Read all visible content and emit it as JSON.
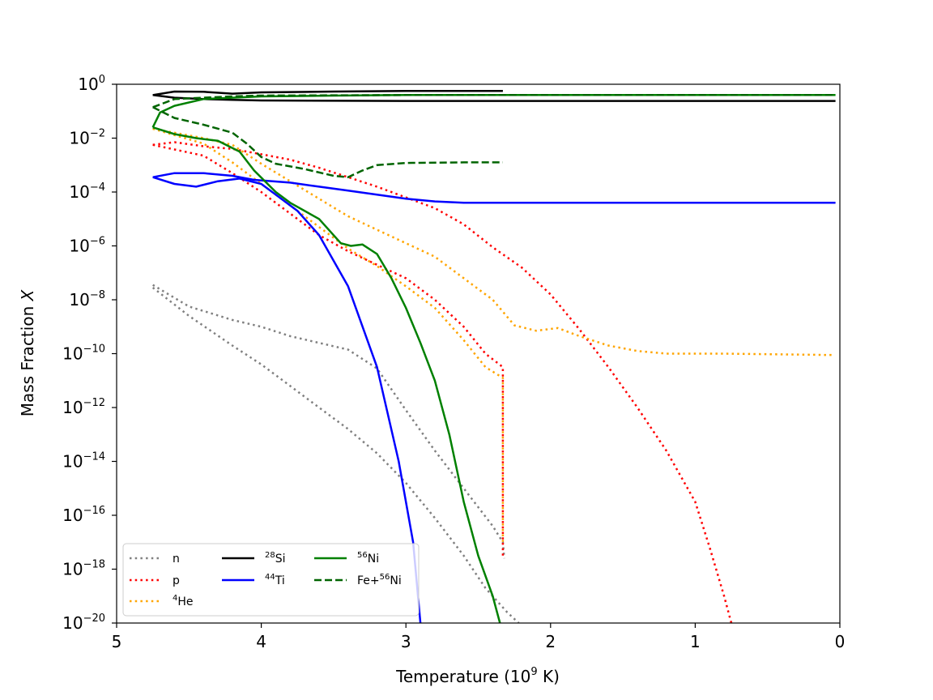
{
  "chart_data": {
    "type": "line",
    "xlabel": "Temperature (10⁹ K)",
    "xlabel_parts": {
      "pre": "Temperature (10",
      "sup": "9",
      "post": " K)"
    },
    "ylabel": "Mass Fraction X",
    "ylabel_parts": {
      "pre": "Mass Fraction ",
      "italic": "X"
    },
    "xlim": [
      5,
      0
    ],
    "ylim_log10": [
      -20,
      0
    ],
    "yscale": "log",
    "grid": false,
    "legend_location": "lower-left",
    "x_ticks": [
      {
        "value": 5,
        "label": "5"
      },
      {
        "value": 4,
        "label": "4"
      },
      {
        "value": 3,
        "label": "3"
      },
      {
        "value": 2,
        "label": "2"
      },
      {
        "value": 1,
        "label": "1"
      },
      {
        "value": 0,
        "label": "0"
      }
    ],
    "y_ticks": [
      {
        "exp": 0,
        "base": "10",
        "sup": "0"
      },
      {
        "exp": -2,
        "base": "10",
        "sup": "−2"
      },
      {
        "exp": -4,
        "base": "10",
        "sup": "−4"
      },
      {
        "exp": -6,
        "base": "10",
        "sup": "−6"
      },
      {
        "exp": -8,
        "base": "10",
        "sup": "−8"
      },
      {
        "exp": -10,
        "base": "10",
        "sup": "−10"
      },
      {
        "exp": -12,
        "base": "10",
        "sup": "−12"
      },
      {
        "exp": -14,
        "base": "10",
        "sup": "−14"
      },
      {
        "exp": -16,
        "base": "10",
        "sup": "−16"
      },
      {
        "exp": -18,
        "base": "10",
        "sup": "−18"
      },
      {
        "exp": -20,
        "base": "10",
        "sup": "−20"
      }
    ],
    "series": [
      {
        "id": "n",
        "name": "n",
        "label_sup": "",
        "label_main": "n",
        "color": "#808080",
        "style": "dotted",
        "legend_col": 0,
        "legend_row": 0,
        "lines": [
          [
            [
              4.75,
              -7.45
            ],
            [
              4.5,
              -8.25
            ],
            [
              4.2,
              -8.75
            ],
            [
              4.0,
              -9.0
            ],
            [
              3.8,
              -9.35
            ],
            [
              3.6,
              -9.6
            ],
            [
              3.4,
              -9.85
            ],
            [
              3.2,
              -10.55
            ],
            [
              3.0,
              -12.1
            ],
            [
              2.8,
              -13.6
            ],
            [
              2.6,
              -15.0
            ],
            [
              2.4,
              -16.4
            ],
            [
              2.33,
              -17.0
            ],
            [
              2.32,
              -17.6
            ]
          ],
          [
            [
              4.75,
              -7.55
            ],
            [
              4.5,
              -8.6
            ],
            [
              4.2,
              -9.7
            ],
            [
              4.0,
              -10.4
            ],
            [
              3.8,
              -11.2
            ],
            [
              3.6,
              -12.0
            ],
            [
              3.4,
              -12.8
            ],
            [
              3.2,
              -13.7
            ],
            [
              3.0,
              -14.8
            ],
            [
              2.8,
              -16.1
            ],
            [
              2.6,
              -17.5
            ],
            [
              2.45,
              -18.7
            ],
            [
              2.3,
              -19.6
            ],
            [
              2.22,
              -20.0
            ]
          ]
        ]
      },
      {
        "id": "p",
        "name": "p",
        "label_sup": "",
        "label_main": "p",
        "color": "#ff0000",
        "style": "dotted",
        "legend_col": 0,
        "legend_row": 1,
        "lines": [
          [
            [
              4.75,
              -2.25
            ],
            [
              4.6,
              -2.15
            ],
            [
              4.4,
              -2.3
            ],
            [
              4.2,
              -2.4
            ],
            [
              4.0,
              -2.6
            ],
            [
              3.8,
              -2.8
            ],
            [
              3.6,
              -3.1
            ],
            [
              3.4,
              -3.45
            ],
            [
              3.2,
              -3.8
            ],
            [
              3.0,
              -4.2
            ],
            [
              2.8,
              -4.6
            ],
            [
              2.6,
              -5.2
            ],
            [
              2.4,
              -6.05
            ],
            [
              2.2,
              -6.8
            ],
            [
              2.0,
              -7.8
            ],
            [
              1.8,
              -9.1
            ],
            [
              1.6,
              -10.5
            ],
            [
              1.4,
              -12.0
            ],
            [
              1.2,
              -13.6
            ],
            [
              1.0,
              -15.5
            ],
            [
              0.9,
              -17.2
            ],
            [
              0.8,
              -19.0
            ],
            [
              0.75,
              -20.0
            ]
          ],
          [
            [
              4.75,
              -2.25
            ],
            [
              4.4,
              -2.65
            ],
            [
              4.2,
              -3.3
            ],
            [
              4.0,
              -4.0
            ],
            [
              3.8,
              -4.8
            ],
            [
              3.6,
              -5.6
            ],
            [
              3.4,
              -6.2
            ],
            [
              3.2,
              -6.7
            ],
            [
              3.0,
              -7.2
            ],
            [
              2.8,
              -8.0
            ],
            [
              2.6,
              -9.0
            ],
            [
              2.45,
              -10.0
            ],
            [
              2.33,
              -10.5
            ],
            [
              2.33,
              -17.6
            ]
          ]
        ]
      },
      {
        "id": "he4",
        "name": "4He",
        "label_sup": "4",
        "label_main": "He",
        "color": "#ffa500",
        "style": "dotted",
        "legend_col": 0,
        "legend_row": 2,
        "lines": [
          [
            [
              4.75,
              -1.65
            ],
            [
              4.4,
              -2.0
            ],
            [
              4.2,
              -2.25
            ],
            [
              4.0,
              -2.95
            ],
            [
              3.8,
              -3.6
            ],
            [
              3.6,
              -4.25
            ],
            [
              3.4,
              -4.9
            ],
            [
              3.2,
              -5.4
            ],
            [
              3.0,
              -5.9
            ],
            [
              2.8,
              -6.4
            ],
            [
              2.6,
              -7.2
            ],
            [
              2.4,
              -8.0
            ],
            [
              2.25,
              -8.95
            ],
            [
              2.1,
              -9.15
            ],
            [
              1.95,
              -9.05
            ],
            [
              1.8,
              -9.35
            ],
            [
              1.6,
              -9.7
            ],
            [
              1.4,
              -9.9
            ],
            [
              1.2,
              -10.0
            ],
            [
              0.8,
              -10.0
            ],
            [
              0.05,
              -10.05
            ]
          ],
          [
            [
              4.75,
              -1.65
            ],
            [
              4.4,
              -2.2
            ],
            [
              4.2,
              -2.9
            ],
            [
              4.0,
              -3.7
            ],
            [
              3.8,
              -4.5
            ],
            [
              3.6,
              -5.3
            ],
            [
              3.4,
              -6.1
            ],
            [
              3.2,
              -6.75
            ],
            [
              3.0,
              -7.5
            ],
            [
              2.8,
              -8.3
            ],
            [
              2.6,
              -9.5
            ],
            [
              2.45,
              -10.5
            ],
            [
              2.33,
              -10.9
            ],
            [
              2.33,
              -17.0
            ]
          ]
        ]
      },
      {
        "id": "si28",
        "name": "28Si",
        "label_sup": "28",
        "label_main": "Si",
        "color": "#000000",
        "style": "solid",
        "legend_col": 1,
        "legend_row": 0,
        "lines": [
          [
            [
              4.75,
              -0.4
            ],
            [
              4.6,
              -0.27
            ],
            [
              4.4,
              -0.28
            ],
            [
              4.2,
              -0.35
            ],
            [
              4.0,
              -0.3
            ],
            [
              3.5,
              -0.27
            ],
            [
              3.0,
              -0.25
            ],
            [
              2.6,
              -0.25
            ],
            [
              2.33,
              -0.25
            ]
          ],
          [
            [
              4.75,
              -0.4
            ],
            [
              4.6,
              -0.5
            ],
            [
              4.4,
              -0.55
            ],
            [
              4.2,
              -0.58
            ],
            [
              4.0,
              -0.6
            ],
            [
              3.0,
              -0.62
            ],
            [
              2.0,
              -0.62
            ],
            [
              1.0,
              -0.62
            ],
            [
              0.03,
              -0.62
            ]
          ]
        ]
      },
      {
        "id": "ti44",
        "name": "44Ti",
        "label_sup": "44",
        "label_main": "Ti",
        "color": "#0000ff",
        "style": "solid",
        "legend_col": 1,
        "legend_row": 1,
        "lines": [
          [
            [
              4.75,
              -3.45
            ],
            [
              4.6,
              -3.3
            ],
            [
              4.4,
              -3.3
            ],
            [
              4.2,
              -3.4
            ],
            [
              4.05,
              -3.55
            ],
            [
              3.8,
              -3.65
            ],
            [
              3.6,
              -3.8
            ],
            [
              3.4,
              -3.95
            ],
            [
              3.2,
              -4.1
            ],
            [
              3.0,
              -4.25
            ],
            [
              2.8,
              -4.35
            ],
            [
              2.6,
              -4.4
            ],
            [
              2.0,
              -4.4
            ],
            [
              1.0,
              -4.4
            ],
            [
              0.03,
              -4.4
            ]
          ],
          [
            [
              4.75,
              -3.45
            ],
            [
              4.6,
              -3.7
            ],
            [
              4.45,
              -3.8
            ],
            [
              4.3,
              -3.6
            ],
            [
              4.15,
              -3.5
            ],
            [
              4.0,
              -3.7
            ],
            [
              3.9,
              -4.1
            ],
            [
              3.75,
              -4.7
            ],
            [
              3.6,
              -5.6
            ],
            [
              3.4,
              -7.5
            ],
            [
              3.2,
              -10.5
            ],
            [
              3.05,
              -14.0
            ],
            [
              2.95,
              -17.0
            ],
            [
              2.9,
              -20.0
            ]
          ]
        ]
      },
      {
        "id": "ni56",
        "name": "56Ni",
        "label_sup": "56",
        "label_main": "Ni",
        "color": "#008000",
        "style": "solid",
        "legend_col": 2,
        "legend_row": 0,
        "lines": [
          [
            [
              4.75,
              -1.6
            ],
            [
              4.7,
              -1.05
            ],
            [
              4.6,
              -0.8
            ],
            [
              4.4,
              -0.55
            ],
            [
              4.2,
              -0.5
            ],
            [
              4.0,
              -0.45
            ],
            [
              3.5,
              -0.42
            ],
            [
              3.0,
              -0.4
            ],
            [
              2.0,
              -0.4
            ],
            [
              1.0,
              -0.4
            ],
            [
              0.03,
              -0.4
            ]
          ],
          [
            [
              4.75,
              -1.6
            ],
            [
              4.6,
              -1.85
            ],
            [
              4.45,
              -2.0
            ],
            [
              4.3,
              -2.1
            ],
            [
              4.15,
              -2.5
            ],
            [
              4.05,
              -3.2
            ],
            [
              3.9,
              -4.0
            ],
            [
              3.8,
              -4.4
            ],
            [
              3.6,
              -5.0
            ],
            [
              3.45,
              -5.9
            ],
            [
              3.38,
              -6.0
            ],
            [
              3.3,
              -5.95
            ],
            [
              3.2,
              -6.3
            ],
            [
              3.1,
              -7.2
            ],
            [
              3.0,
              -8.3
            ],
            [
              2.9,
              -9.6
            ],
            [
              2.8,
              -11.0
            ],
            [
              2.7,
              -13.0
            ],
            [
              2.6,
              -15.5
            ],
            [
              2.5,
              -17.5
            ],
            [
              2.4,
              -19.0
            ],
            [
              2.35,
              -20.0
            ]
          ]
        ]
      },
      {
        "id": "fe_ni56",
        "name": "Fe+56Ni",
        "label_sup": "56",
        "label_main": "Ni",
        "label_pre": "Fe+",
        "color": "#006400",
        "style": "dashed",
        "legend_col": 2,
        "legend_row": 1,
        "lines": [
          [
            [
              4.75,
              -0.85
            ],
            [
              4.6,
              -0.55
            ],
            [
              4.4,
              -0.5
            ],
            [
              4.2,
              -0.45
            ],
            [
              4.0,
              -0.42
            ],
            [
              3.0,
              -0.4
            ],
            [
              2.0,
              -0.4
            ],
            [
              1.0,
              -0.4
            ],
            [
              0.03,
              -0.4
            ]
          ],
          [
            [
              4.75,
              -0.85
            ],
            [
              4.6,
              -1.25
            ],
            [
              4.4,
              -1.5
            ],
            [
              4.2,
              -1.8
            ],
            [
              4.1,
              -2.2
            ],
            [
              4.0,
              -2.7
            ],
            [
              3.9,
              -2.95
            ],
            [
              3.7,
              -3.15
            ],
            [
              3.5,
              -3.4
            ],
            [
              3.4,
              -3.45
            ],
            [
              3.3,
              -3.2
            ],
            [
              3.2,
              -3.0
            ],
            [
              3.0,
              -2.92
            ],
            [
              2.6,
              -2.9
            ],
            [
              2.33,
              -2.9
            ]
          ]
        ]
      }
    ]
  }
}
